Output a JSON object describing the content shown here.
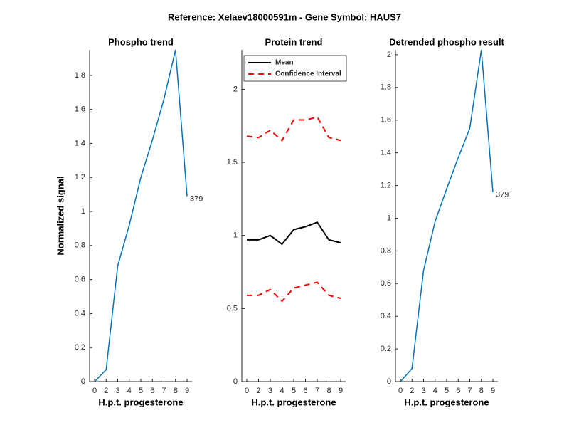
{
  "title": "Reference:  Xelaev18000591m - Gene Symbol:  HAUS7",
  "chart_data": [
    {
      "type": "line",
      "title": "Phospho trend",
      "x_label": "H.p.t. progesterone",
      "y_label": "Normalized signal",
      "categories": [
        "0",
        "2",
        "3",
        "4",
        "5",
        "6",
        "7",
        "8",
        "9"
      ],
      "series": [
        {
          "color": "#0072bd",
          "values": [
            0,
            0.07,
            0.68,
            0.92,
            1.2,
            1.42,
            1.66,
            1.95,
            1.09
          ]
        }
      ],
      "annotation": "379",
      "ylim": [
        0,
        1.95
      ],
      "yticks": [
        0,
        0.2,
        0.4,
        0.6,
        0.8,
        1,
        1.2,
        1.4,
        1.6,
        1.8
      ]
    },
    {
      "type": "line",
      "title": "Protein trend",
      "x_label": "H.p.t. progesterone",
      "categories": [
        "0",
        "2",
        "3",
        "4",
        "5",
        "6",
        "7",
        "8",
        "9"
      ],
      "series": [
        {
          "name": "Mean",
          "color": "#000000",
          "values": [
            0.97,
            0.97,
            1.0,
            0.94,
            1.04,
            1.06,
            1.09,
            0.97,
            0.95
          ]
        },
        {
          "name": "Confidence Interval",
          "color": "#ff0000",
          "dashed": true,
          "values": [
            1.68,
            1.67,
            1.72,
            1.65,
            1.79,
            1.79,
            1.81,
            1.67,
            1.65
          ],
          "lower": [
            0.59,
            0.59,
            0.63,
            0.55,
            0.64,
            0.66,
            0.68,
            0.59,
            0.57
          ]
        }
      ],
      "legend": "northwest",
      "ylim": [
        0,
        2.27
      ],
      "yticks": [
        0,
        0.5,
        1,
        1.5,
        2
      ]
    },
    {
      "type": "line",
      "title": "Detrended phospho result",
      "x_label": "H.p.t. progesterone",
      "categories": [
        "0",
        "2",
        "3",
        "4",
        "5",
        "6",
        "7",
        "8",
        "9"
      ],
      "series": [
        {
          "color": "#0072bd",
          "values": [
            0,
            0.08,
            0.68,
            0.98,
            1.18,
            1.37,
            1.55,
            2.03,
            1.16
          ]
        }
      ],
      "annotation": "379",
      "ylim": [
        0,
        2.03
      ],
      "yticks": [
        0,
        0.2,
        0.4,
        0.6,
        0.8,
        1,
        1.2,
        1.4,
        1.6,
        1.8,
        2
      ]
    }
  ]
}
